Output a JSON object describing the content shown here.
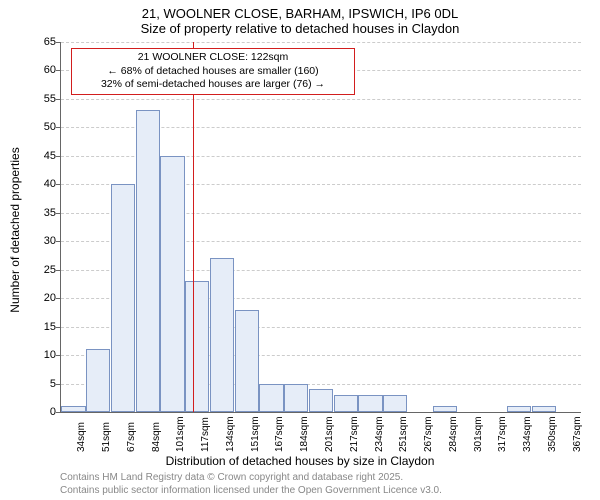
{
  "title_line1": "21, WOOLNER CLOSE, BARHAM, IPSWICH, IP6 0DL",
  "title_line2": "Size of property relative to detached houses in Claydon",
  "chart": {
    "type": "histogram",
    "xlabel": "Distribution of detached houses by size in Claydon",
    "ylabel": "Number of detached properties",
    "ylim": [
      0,
      65
    ],
    "ytick_step": 5,
    "bar_fill": "#e6edf8",
    "bar_border": "#7a93c2",
    "grid_color": "#cccccc",
    "axis_color": "#666666",
    "background_color": "#ffffff",
    "marker_color": "#d21e1e",
    "categories": [
      "34sqm",
      "51sqm",
      "67sqm",
      "84sqm",
      "101sqm",
      "117sqm",
      "134sqm",
      "151sqm",
      "167sqm",
      "184sqm",
      "201sqm",
      "217sqm",
      "234sqm",
      "251sqm",
      "267sqm",
      "284sqm",
      "301sqm",
      "317sqm",
      "334sqm",
      "350sqm",
      "367sqm"
    ],
    "values": [
      1,
      11,
      40,
      53,
      45,
      23,
      27,
      18,
      5,
      5,
      4,
      3,
      3,
      3,
      0,
      1,
      0,
      0,
      1,
      1,
      0
    ],
    "marker_bin_index": 5,
    "marker_fraction_in_bin": 0.35,
    "callout": {
      "line1": "21 WOOLNER CLOSE: 122sqm",
      "line2": "← 68% of detached houses are smaller (160)",
      "line3": "32% of semi-detached houses are larger (76) →"
    }
  },
  "footer_line1": "Contains HM Land Registry data © Crown copyright and database right 2025.",
  "footer_line2": "Contains public sector information licensed under the Open Government Licence v3.0."
}
